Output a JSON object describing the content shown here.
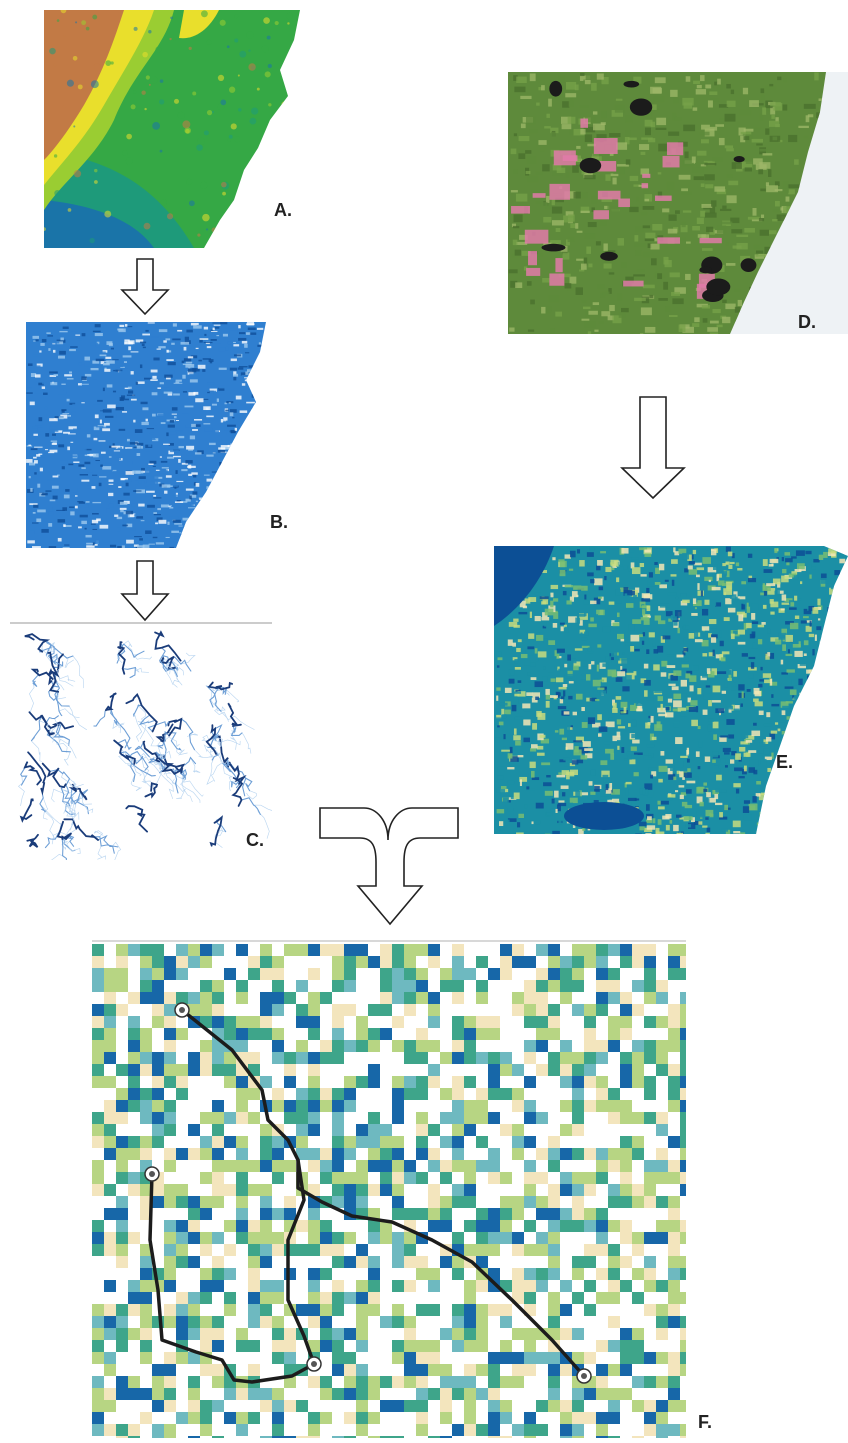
{
  "labels": {
    "a": "A.",
    "b": "B.",
    "c": "C.",
    "d": "D.",
    "e": "E.",
    "f": "F."
  },
  "colors": {
    "elevation": [
      "#c27a45",
      "#e9df2c",
      "#9acd32",
      "#35a845",
      "#1e9a7a",
      "#1a74a8"
    ],
    "slope": [
      "#0f4f9a",
      "#2f7fd0",
      "#9ec9ee",
      "#ffffff"
    ],
    "streams": [
      "#1a3c7a",
      "#6e9fd6",
      "#bcd7f1"
    ],
    "satellite": [
      "#5e8a3b",
      "#77a14a",
      "#4a6f2d",
      "#9fb86a",
      "#e07aa8",
      "#1b1b1b"
    ],
    "landcover": [
      "#0c4f95",
      "#1b8fa5",
      "#77bd72",
      "#c7dc7e",
      "#f2e6b5"
    ],
    "grid": [
      "#ffffff",
      "#f3e5bd",
      "#b7d583",
      "#3ea58a",
      "#1767a8",
      "#6eb9c0"
    ],
    "route": "#1c1c1c",
    "arrow_stroke": "#222222"
  },
  "route_nodes": 4
}
